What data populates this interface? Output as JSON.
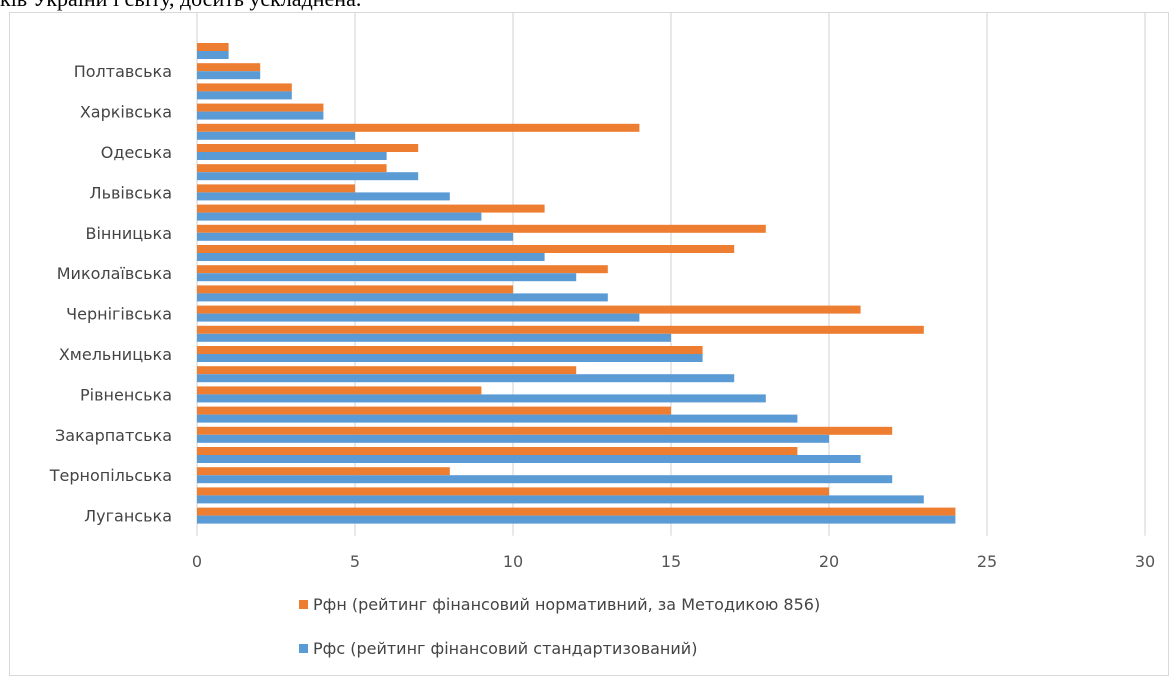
{
  "intro_text": "ків України і світу, досить ускладнена.",
  "chart_data": {
    "type": "bar",
    "orientation": "horizontal",
    "categories": [
      "",
      "Полтавська",
      "",
      "Харківська",
      "",
      "Одеська",
      "",
      "Львівська",
      "",
      "Вінницька",
      "",
      "Миколаївська",
      "",
      "Чернігівська",
      "",
      "Хмельницька",
      "",
      "Рівненська",
      "",
      "Закарпатська",
      "",
      "Тернопільська",
      "",
      "Луганська"
    ],
    "series": [
      {
        "name": "Рфн (рейтинг фінансовий нормативний, за Методикою 856)",
        "color": "#ED7D31",
        "values": [
          1,
          2,
          3,
          4,
          14,
          7,
          6,
          5,
          11,
          18,
          17,
          13,
          10,
          21,
          23,
          16,
          12,
          9,
          15,
          22,
          19,
          8,
          20,
          24
        ]
      },
      {
        "name": "Рфс  (рейтинг фінансовий стандартизований)",
        "color": "#5B9BD5",
        "values": [
          1,
          2,
          3,
          4,
          5,
          6,
          7,
          8,
          9,
          10,
          11,
          12,
          13,
          14,
          15,
          16,
          17,
          18,
          19,
          20,
          21,
          22,
          23,
          24
        ]
      }
    ],
    "xlim": [
      0,
      30
    ],
    "xticks": [
      "0",
      "5",
      "10",
      "15",
      "20",
      "25",
      "30"
    ],
    "grid": true,
    "legend_position": "bottom"
  }
}
